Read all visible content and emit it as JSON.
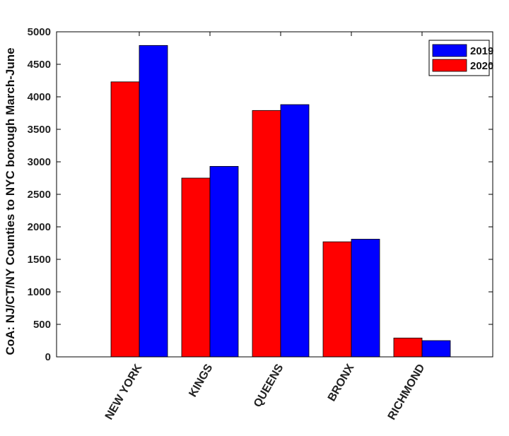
{
  "chart_data": {
    "type": "bar",
    "title": "",
    "xlabel": "",
    "ylabel": "CoA: NJ/CT/NY Counties to NYC borough March-June",
    "categories": [
      "NEW YORK",
      "KINGS",
      "QUEENS",
      "BRONX",
      "RICHMOND"
    ],
    "series": [
      {
        "name": "2020",
        "color": "#ff0000",
        "values": [
          4230,
          2750,
          3790,
          1770,
          290
        ]
      },
      {
        "name": "2019",
        "color": "#0000ff",
        "values": [
          4790,
          2930,
          3880,
          1810,
          250
        ]
      }
    ],
    "legend_order": [
      "2019",
      "2020"
    ],
    "ylim": [
      0,
      5000
    ],
    "yticks": [
      0,
      500,
      1000,
      1500,
      2000,
      2500,
      3000,
      3500,
      4000,
      4500,
      5000
    ],
    "grid": false,
    "legend_position": "top-right"
  }
}
